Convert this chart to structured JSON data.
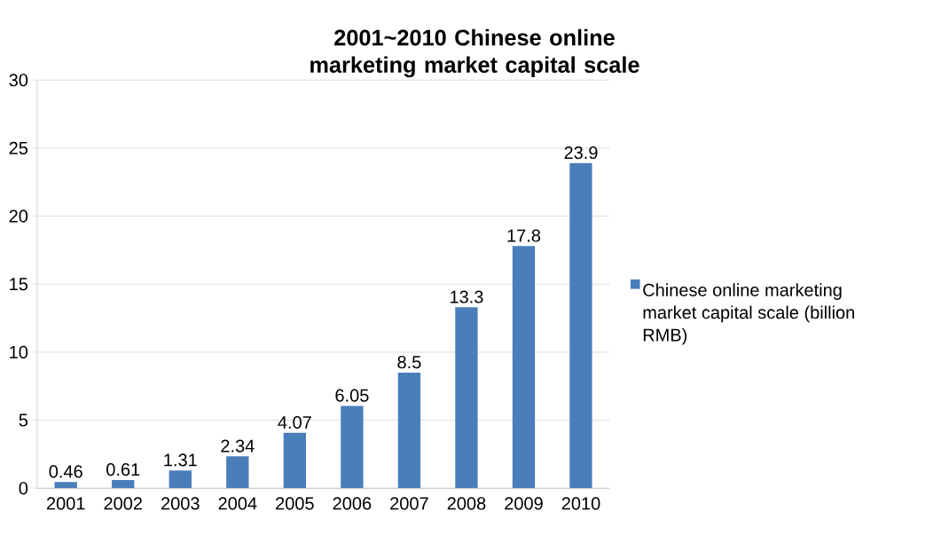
{
  "chart_data": {
    "type": "bar",
    "title": "2001~2010 Chinese online marketing market capital scale",
    "categories": [
      "2001",
      "2002",
      "2003",
      "2004",
      "2005",
      "2006",
      "2007",
      "2008",
      "2009",
      "2010"
    ],
    "series": [
      {
        "name": "Chinese online marketing market capital scale (billion RMB)",
        "color": "#4a7ebb",
        "values": [
          0.46,
          0.61,
          1.31,
          2.34,
          4.07,
          6.05,
          8.5,
          13.3,
          17.8,
          23.9
        ]
      }
    ],
    "ylim": [
      0,
      30
    ],
    "yticks": [
      0,
      5,
      10,
      15,
      20,
      25,
      30
    ],
    "grid": "y",
    "legend": "right",
    "data_labels": true
  }
}
